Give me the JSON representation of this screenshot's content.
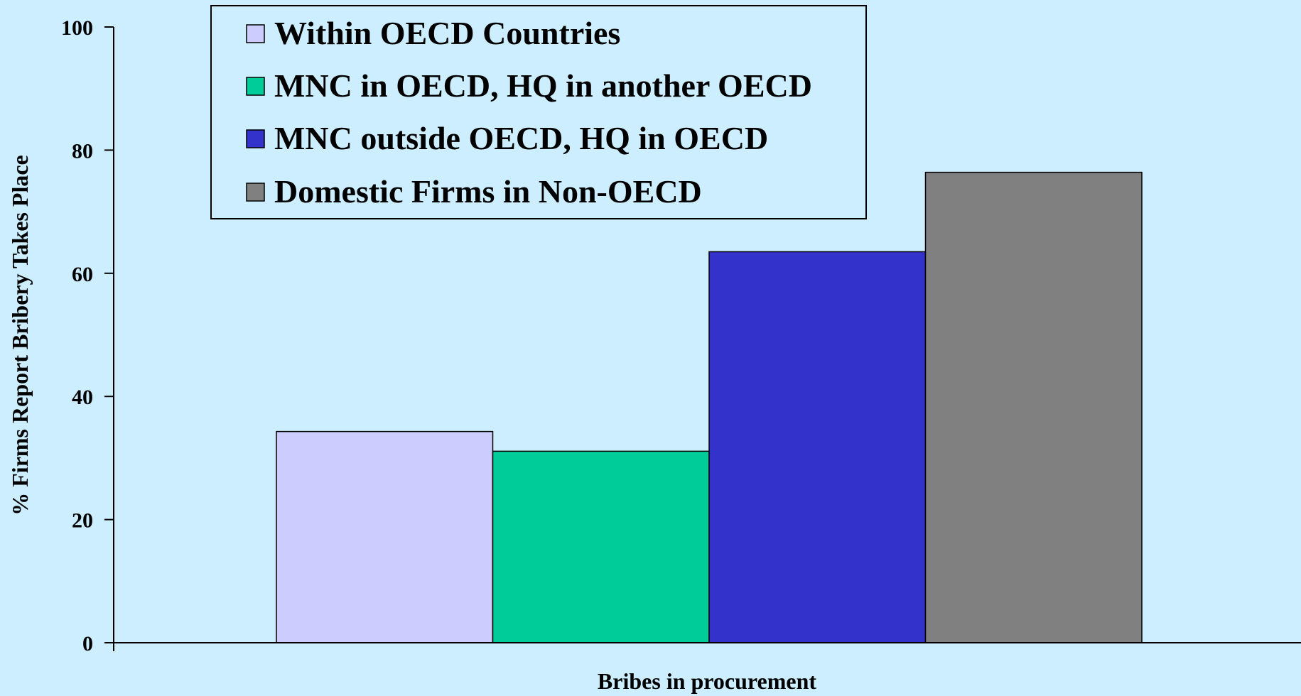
{
  "chart_data": {
    "type": "bar",
    "title": "",
    "xlabel": "Bribes in procurement",
    "ylabel": "% Firms Report Bribery Takes Place",
    "ylim": [
      0,
      100
    ],
    "yticks": [
      0,
      20,
      40,
      60,
      80,
      100
    ],
    "categories": [
      "Bribes in procurement"
    ],
    "grid": false,
    "legend_position": "top-left",
    "series": [
      {
        "name": "Within OECD Countries",
        "values": [
          34.3
        ],
        "color": "#ccccff"
      },
      {
        "name": "MNC in OECD, HQ in another OECD",
        "values": [
          31.1
        ],
        "color": "#00cc99"
      },
      {
        "name": "MNC outside OECD, HQ in OECD",
        "values": [
          63.5
        ],
        "color": "#3333cc"
      },
      {
        "name": "Domestic Firms in Non-OECD",
        "values": [
          76.4
        ],
        "color": "#808080"
      }
    ]
  }
}
